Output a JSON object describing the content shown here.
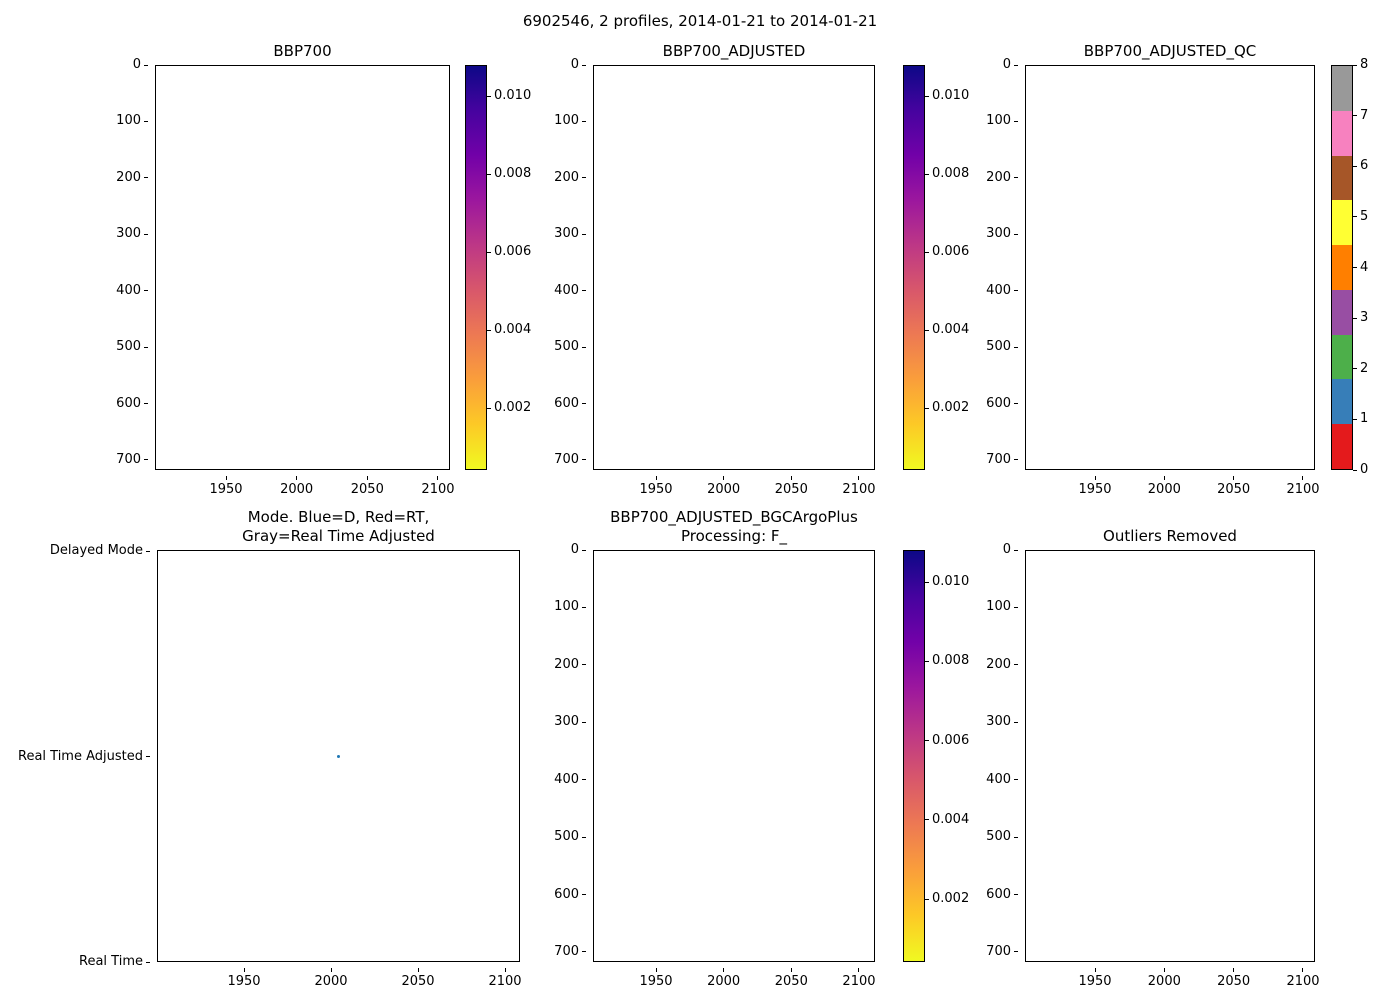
{
  "figure": {
    "suptitle": "6902546, 2 profiles, 2014-01-21 to 2014-01-21"
  },
  "subplots": [
    {
      "title": "BBP700",
      "yticks": [
        "0",
        "100",
        "200",
        "300",
        "400",
        "500",
        "600",
        "700"
      ],
      "xticks": [
        "1950",
        "2000",
        "2050",
        "2100"
      ]
    },
    {
      "title": "BBP700_ADJUSTED",
      "yticks": [
        "0",
        "100",
        "200",
        "300",
        "400",
        "500",
        "600",
        "700"
      ],
      "xticks": [
        "1950",
        "2000",
        "2050",
        "2100"
      ]
    },
    {
      "title": "BBP700_ADJUSTED_QC",
      "yticks": [
        "0",
        "100",
        "200",
        "300",
        "400",
        "500",
        "600",
        "700"
      ],
      "xticks": [
        "1950",
        "2000",
        "2050",
        "2100"
      ]
    },
    {
      "title_line1": "Mode. Blue=D, Red=RT,",
      "title_line2": "Gray=Real Time Adjusted",
      "yticks": [
        "Delayed Mode",
        "Real Time Adjusted",
        "Real Time"
      ],
      "xticks": [
        "1950",
        "2000",
        "2050",
        "2100"
      ]
    },
    {
      "title_line1": "BBP700_ADJUSTED_BGCArgoPlus",
      "title_line2": "Processing: F_",
      "yticks": [
        "0",
        "100",
        "200",
        "300",
        "400",
        "500",
        "600",
        "700"
      ],
      "xticks": [
        "1950",
        "2000",
        "2050",
        "2100"
      ]
    },
    {
      "title": "Outliers Removed",
      "yticks": [
        "0",
        "100",
        "200",
        "300",
        "400",
        "500",
        "600",
        "700"
      ],
      "xticks": [
        "1950",
        "2000",
        "2050",
        "2100"
      ]
    }
  ],
  "colorbars": {
    "continuous": {
      "ticks": [
        "0.010",
        "0.008",
        "0.006",
        "0.004",
        "0.002"
      ],
      "gradient_top_to_bottom": [
        "#0d0887",
        "#46039f",
        "#7201a8",
        "#9c179e",
        "#bd3786",
        "#d8576b",
        "#ed7953",
        "#fa9e3b",
        "#fdc926",
        "#f0f921"
      ]
    },
    "qc": {
      "ticks": [
        "8",
        "7",
        "6",
        "5",
        "4",
        "3",
        "2",
        "1",
        "0"
      ],
      "segment_colors_top_to_bottom": [
        "#999999",
        "#f781bf",
        "#a65628",
        "#ffff33",
        "#ff7f00",
        "#984ea3",
        "#4daf4a",
        "#377eb8",
        "#e41a1c"
      ]
    }
  },
  "mode_plot_point": {
    "x": 2005,
    "mode": "Real Time Adjusted",
    "color": "#1f77b4"
  },
  "chart_data": [
    {
      "type": "scatter",
      "title": "BBP700",
      "xlabel": "",
      "ylabel": "",
      "xlim": [
        1900,
        2108
      ],
      "ylim": [
        718,
        0
      ],
      "y_axis_inverted": true,
      "xticks": [
        1950,
        2000,
        2050,
        2100
      ],
      "yticks": [
        0,
        100,
        200,
        300,
        400,
        500,
        600,
        700
      ],
      "points": [],
      "colorbar": {
        "colormap": "plasma_r",
        "ticks": [
          0.002,
          0.004,
          0.006,
          0.008,
          0.01
        ]
      }
    },
    {
      "type": "scatter",
      "title": "BBP700_ADJUSTED",
      "xlabel": "",
      "ylabel": "",
      "xlim": [
        1900,
        2108
      ],
      "ylim": [
        718,
        0
      ],
      "y_axis_inverted": true,
      "xticks": [
        1950,
        2000,
        2050,
        2100
      ],
      "yticks": [
        0,
        100,
        200,
        300,
        400,
        500,
        600,
        700
      ],
      "points": [],
      "colorbar": {
        "colormap": "plasma_r",
        "ticks": [
          0.002,
          0.004,
          0.006,
          0.008,
          0.01
        ]
      }
    },
    {
      "type": "scatter",
      "title": "BBP700_ADJUSTED_QC",
      "xlabel": "",
      "ylabel": "",
      "xlim": [
        1900,
        2108
      ],
      "ylim": [
        718,
        0
      ],
      "y_axis_inverted": true,
      "xticks": [
        1950,
        2000,
        2050,
        2100
      ],
      "yticks": [
        0,
        100,
        200,
        300,
        400,
        500,
        600,
        700
      ],
      "points": [],
      "colorbar": {
        "colormap": "qc_flags_discrete",
        "ticks": [
          0,
          1,
          2,
          3,
          4,
          5,
          6,
          7,
          8
        ]
      }
    },
    {
      "type": "scatter",
      "title": "Mode. Blue=D, Red=RT, Gray=Real Time Adjusted",
      "xlabel": "",
      "ylabel": "",
      "xlim": [
        1900,
        2108
      ],
      "y_categories": [
        "Real Time",
        "Real Time Adjusted",
        "Delayed Mode"
      ],
      "xticks": [
        1950,
        2000,
        2050,
        2100
      ],
      "points": [
        {
          "x": 2005,
          "y": "Real Time Adjusted"
        }
      ]
    },
    {
      "type": "scatter",
      "title": "BBP700_ADJUSTED_BGCArgoPlus Processing: F_",
      "xlabel": "",
      "ylabel": "",
      "xlim": [
        1900,
        2108
      ],
      "ylim": [
        718,
        0
      ],
      "y_axis_inverted": true,
      "xticks": [
        1950,
        2000,
        2050,
        2100
      ],
      "yticks": [
        0,
        100,
        200,
        300,
        400,
        500,
        600,
        700
      ],
      "points": [],
      "colorbar": {
        "colormap": "plasma_r",
        "ticks": [
          0.002,
          0.004,
          0.006,
          0.008,
          0.01
        ]
      }
    },
    {
      "type": "scatter",
      "title": "Outliers Removed",
      "xlabel": "",
      "ylabel": "",
      "xlim": [
        1900,
        2108
      ],
      "ylim": [
        718,
        0
      ],
      "y_axis_inverted": true,
      "xticks": [
        1950,
        2000,
        2050,
        2100
      ],
      "yticks": [
        0,
        100,
        200,
        300,
        400,
        500,
        600,
        700
      ],
      "points": []
    }
  ]
}
